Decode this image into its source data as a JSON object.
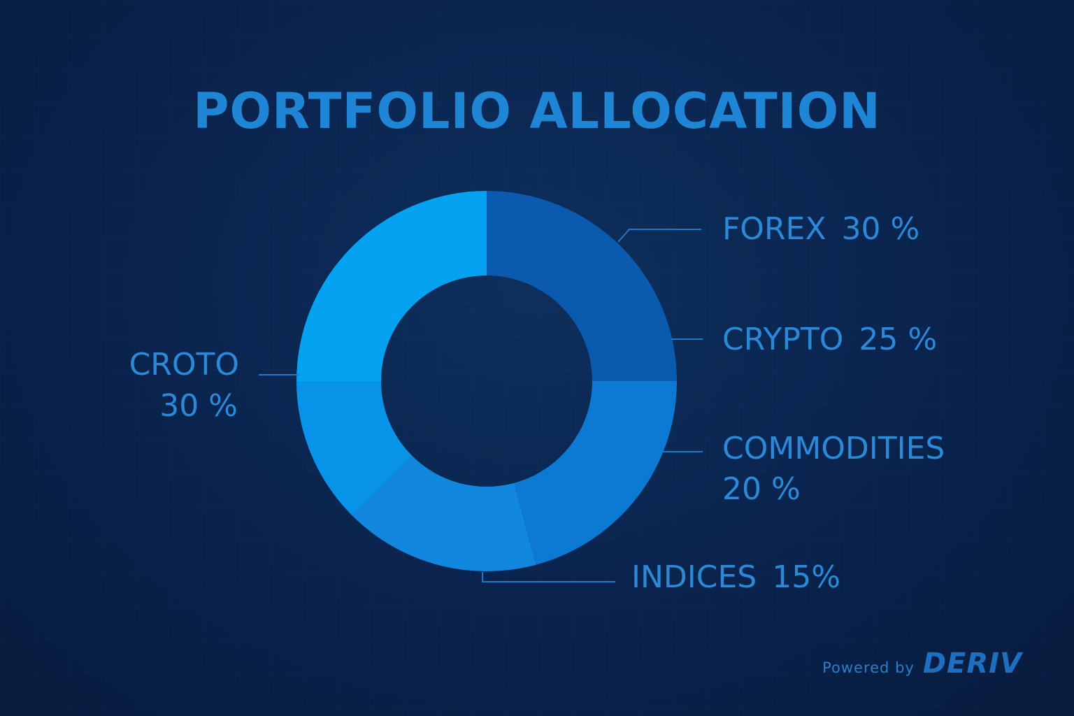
{
  "page": {
    "title": "PORTFOLIO ALLOCATION",
    "footer": {
      "powered_by": "Powered by",
      "brand": "DERIV"
    }
  },
  "colors": {
    "background": "#0a2550",
    "title": "#1f86d6",
    "label": "#2a8ad8",
    "leader": "#1e78c4"
  },
  "chart_data": {
    "type": "pie",
    "style": "donut",
    "title": "PORTFOLIO ALLOCATION",
    "slices": [
      {
        "label": "FOREX",
        "value": 30,
        "value_label": "30 %",
        "color": "#0a5bb0"
      },
      {
        "label": "CRYPTO",
        "value": 25,
        "value_label": "25 %",
        "color": "#0c79d2"
      },
      {
        "label": "COMMODITIES",
        "value": 20,
        "value_label": "20 %",
        "color": "#1188dd"
      },
      {
        "label": "INDICES",
        "value": 15,
        "value_label": "15%",
        "color": "#0794e8"
      },
      {
        "label": "CROTO",
        "value": 30,
        "value_label": "30 %",
        "color": "#06a2f2"
      }
    ]
  }
}
